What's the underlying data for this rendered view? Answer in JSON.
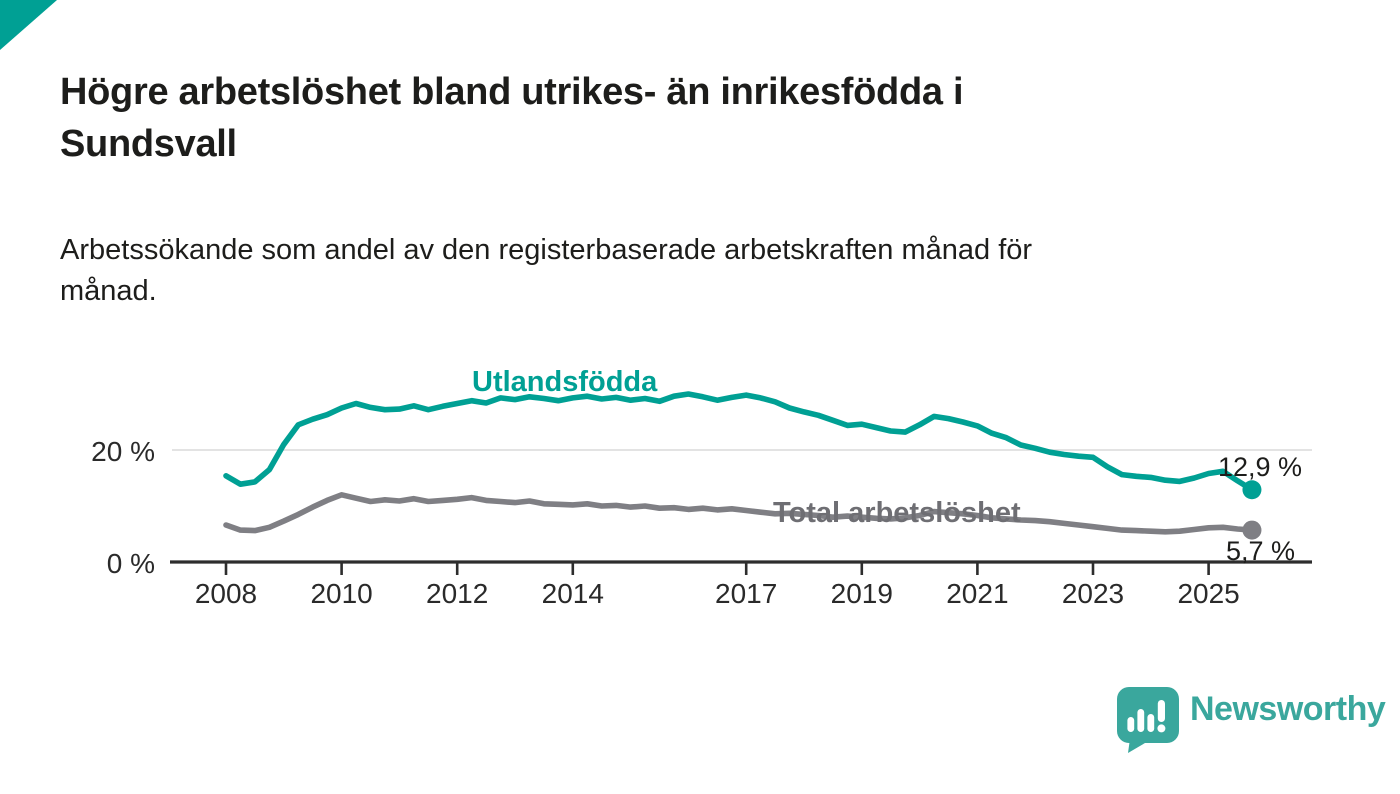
{
  "page": {
    "background": "#ffffff",
    "accent_color": "#00a094"
  },
  "header": {
    "title_lines": [
      "Högre arbetslöshet bland utrikes- än inrikesfödda i",
      "Sundsvall"
    ],
    "subtitle_lines": [
      "Arbetssökande som andel av den registerbaserade arbetskraften månad för",
      "månad."
    ]
  },
  "chart_data": {
    "type": "line",
    "title": "Högre arbetslöshet bland utrikes- än inrikesfödda i Sundsvall",
    "subtitle": "Arbetssökande som andel av den registerbaserade arbetskraften månad för månad.",
    "unit": "%",
    "grid": "horizontal gridline at 20 % only",
    "legend_position": "labels floated next to lines",
    "xlim": [
      2007.6,
      2026.2
    ],
    "ylim": [
      0,
      32
    ],
    "x": {
      "start_year": 2008,
      "step_years": 0.25,
      "frequency": "monthly data shown, sampled quarterly here"
    },
    "x_ticks": [
      {
        "year": 2008,
        "label": "2008"
      },
      {
        "year": 2010,
        "label": "2010"
      },
      {
        "year": 2012,
        "label": "2012"
      },
      {
        "year": 2014,
        "label": "2014"
      },
      {
        "year": 2017,
        "label": "2017"
      },
      {
        "year": 2019,
        "label": "2019"
      },
      {
        "year": 2021,
        "label": "2021"
      },
      {
        "year": 2023,
        "label": "2023"
      },
      {
        "year": 2025,
        "label": "2025"
      }
    ],
    "y_ticks": [
      {
        "value": 0,
        "label": "0 %"
      },
      {
        "value": 20,
        "label": "20 %"
      }
    ],
    "series": [
      {
        "name": "Utlandsfödda",
        "color": "#00a094",
        "end_label": "12,9 %",
        "end_value": 12.9,
        "values": [
          15.4,
          13.9,
          14.3,
          16.5,
          21.0,
          24.5,
          25.5,
          26.3,
          27.5,
          28.3,
          27.6,
          27.2,
          27.3,
          27.9,
          27.2,
          27.8,
          28.3,
          28.8,
          28.4,
          29.3,
          29.0,
          29.5,
          29.2,
          28.8,
          29.3,
          29.6,
          29.1,
          29.4,
          28.9,
          29.2,
          28.7,
          29.6,
          30.0,
          29.5,
          28.9,
          29.4,
          29.8,
          29.3,
          28.6,
          27.5,
          26.8,
          26.2,
          25.3,
          24.4,
          24.6,
          24.0,
          23.4,
          23.2,
          24.5,
          26.0,
          25.6,
          25.0,
          24.3,
          23.0,
          22.2,
          20.9,
          20.3,
          19.6,
          19.2,
          18.9,
          18.7,
          17.0,
          15.6,
          15.3,
          15.1,
          14.6,
          14.4,
          15.0,
          15.8,
          16.2,
          14.5,
          12.9
        ]
      },
      {
        "name": "Total arbetslöshet",
        "color": "#7f7f84",
        "end_label": "5,7 %",
        "end_value": 5.7,
        "values": [
          6.6,
          5.7,
          5.6,
          6.2,
          7.3,
          8.5,
          9.8,
          11.0,
          12.0,
          11.4,
          10.8,
          11.1,
          10.9,
          11.3,
          10.8,
          11.0,
          11.2,
          11.5,
          11.0,
          10.8,
          10.6,
          10.9,
          10.4,
          10.3,
          10.2,
          10.4,
          10.0,
          10.1,
          9.8,
          10.0,
          9.6,
          9.7,
          9.4,
          9.6,
          9.3,
          9.5,
          9.2,
          8.9,
          8.6,
          8.7,
          8.5,
          8.3,
          8.0,
          8.2,
          8.0,
          7.8,
          7.7,
          7.9,
          8.3,
          9.0,
          8.8,
          8.6,
          8.3,
          7.9,
          7.7,
          7.5,
          7.4,
          7.2,
          6.9,
          6.6,
          6.3,
          6.0,
          5.7,
          5.6,
          5.5,
          5.4,
          5.5,
          5.8,
          6.1,
          6.2,
          5.9,
          5.7
        ]
      }
    ]
  },
  "footer": {
    "brand": "Newsworthy",
    "brand_color": "#3aa79d",
    "logo_icon": "newsworthy-speech-bubble-with-bar-chart-and-exclamation"
  }
}
